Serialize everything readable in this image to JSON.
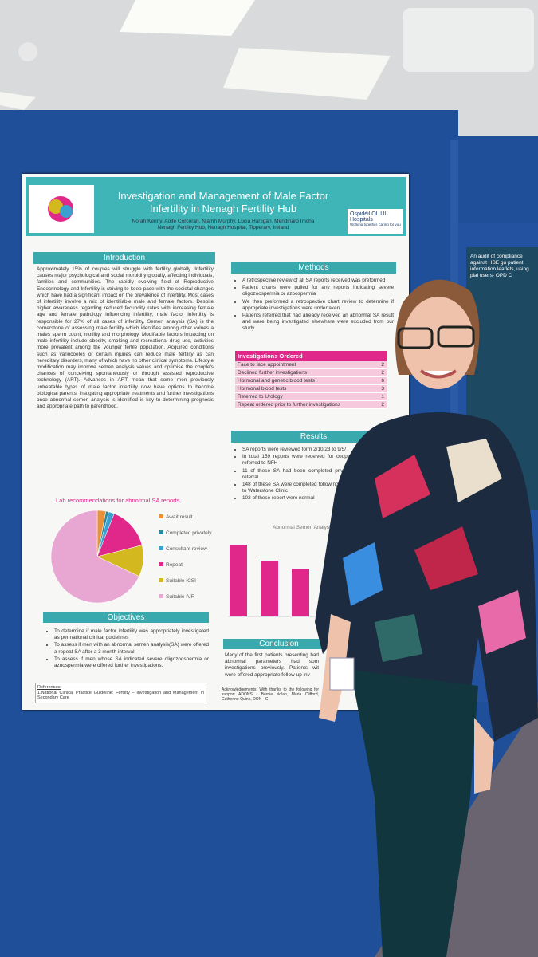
{
  "poster": {
    "title": "Investigation and Management of Male Factor Infertility in Nenagh Fertility Hub",
    "authors": "Norah Kenny, Aoife Corcoran, Niamh Murphy, Lucia Hartigan, Mendinaro Imcha",
    "affiliation": "Nenagh Fertility Hub, Nenagh Hospital, Tipperary, Ireland",
    "logo": {
      "name": "Ospidéil OL UL Hospitals",
      "tagline": "Working together, caring for you"
    },
    "introduction": {
      "heading": "Introduction",
      "text": "Approximately 15% of couples will struggle with fertility globally. Infertility causes major psychological and social morbidity globally, affecting individuals, families and communities. The rapidly evolving field of Reproductive Endocrinology and Infertility is striving to keep pace with the societal changes which have had a significant impact on the prevalence of infertility. Most cases of infertility involve a mix of identifiable male and female factors. Despite higher awareness regarding reduced fecundity rates with increasing female age and female pathology influencing infertility, male factor infertility is responsible for 27% of all cases of infertility. Semen analysis (SA) is the cornerstone of assessing male fertility which identifies among other values a males sperm count, motility and morphology. Modifiable factors impacting on male infertility include obesity, smoking and recreational drug use, activities more prevalent among the younger fertile population. Acquired conditions such as variocoeles or certain injuries can reduce male fertility as can hereditary disorders, many of which have no other clinical symptoms. Lifestyle modification may improve semen analysis values and optimise the couple's chances of conceiving spontaneously or through assisted reproductive technology (ART). Advances in ART mean that some men previously untreatable types of male factor infertility now have options to become biological parents. Instigating appropriate treatments and further investigations once abnormal semen analysis is identified is key to determining prognosis and appropriate path to parenthood."
    },
    "pie": {
      "type": "pie",
      "title": "Lab recommendations for abnormal SA reports",
      "categories": [
        "Await result",
        "Completed privately",
        "Consultant review",
        "Repeat",
        "Suitable ICSI",
        "Suitable IVF"
      ],
      "values": [
        3,
        1,
        2,
        15,
        11,
        68
      ],
      "colors": [
        "#e8913a",
        "#2a8a9a",
        "#3aa0d0",
        "#e0288a",
        "#d4b820",
        "#e8a6d2"
      ]
    },
    "objectives": {
      "heading": "Objectives",
      "items": [
        "To determine if male factor infertility was appropriately investigated as per national clinical guidelines",
        "To assess if men with an abnormal semen analysis(SA) were offered a repeat SA after a 3 month interval",
        "To assess if men whose SA indicated severe oligozoospermia or azoospermia were offered further investigations."
      ]
    },
    "references": {
      "heading": "References:",
      "text": "1.National Clinical Practice Guideline: Fertility – Investigation and Management in Secondary Care"
    },
    "methods": {
      "heading": "Methods",
      "items": [
        "A retrospective review of all SA reports received was preformed",
        "Patient charts were pulled for any reports indicating severe oligozoospermia or azoospermia",
        "We then preformed a retrospective chart review to determine if appropriate investigations were undertaken",
        "Patients referred that had already received an abnormal SA result and were being investigated elsewhere were excluded from our study"
      ]
    },
    "table": {
      "heading": "Investigations Ordered",
      "rows": [
        [
          "Face to face appointment",
          "2"
        ],
        [
          "Declined further investigations",
          "2"
        ],
        [
          "Hormonal and genetic blood tests",
          "6"
        ],
        [
          "Hormonal blood tests",
          "3"
        ],
        [
          "Referred to Urology",
          "1"
        ],
        [
          "Repeat ordered prior to further investigations",
          "2"
        ]
      ]
    },
    "results": {
      "heading": "Results",
      "items": [
        "SA reports were reviewed form 2/10/23 to 9/5/",
        "In total 159 reports were received for couples referred to NFH",
        "11 of these SA had been completed privately referral",
        "148 of these SA were completed following r NFH to Waterstone Clinic",
        "102 of these report were normal"
      ]
    },
    "bars": {
      "type": "bar",
      "title": "Abnormal Semen Analysis",
      "categories": [
        null,
        null,
        null
      ],
      "values": [
        9,
        7,
        6
      ],
      "color": "#e0288a"
    },
    "conclusion": {
      "heading": "Conclusion",
      "text": "Many of the first patients presenting had abnormal parameters had som investigations previously. Patients wit were offered appropriate follow-up inv"
    },
    "acknowledgements": "Acknowledgements: With thanks to the following for support ADONS - Bernie Nolan, Maria Clifford, Catherine Quinn, DON - C"
  },
  "side_poster": {
    "title": "An audit of compliance against HSE gu patient information leaflets, using plai users- OPD C"
  }
}
